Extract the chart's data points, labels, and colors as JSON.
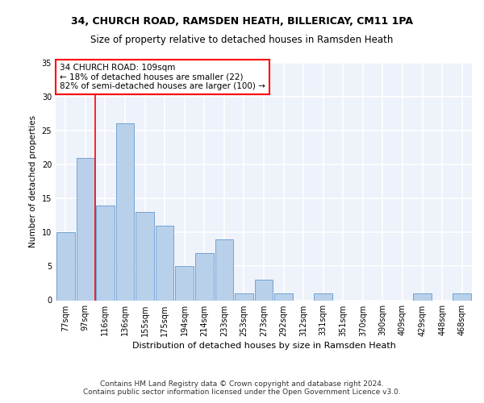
{
  "title1": "34, CHURCH ROAD, RAMSDEN HEATH, BILLERICAY, CM11 1PA",
  "title2": "Size of property relative to detached houses in Ramsden Heath",
  "xlabel": "Distribution of detached houses by size in Ramsden Heath",
  "ylabel": "Number of detached properties",
  "footer1": "Contains HM Land Registry data © Crown copyright and database right 2024.",
  "footer2": "Contains public sector information licensed under the Open Government Licence v3.0.",
  "categories": [
    "77sqm",
    "97sqm",
    "116sqm",
    "136sqm",
    "155sqm",
    "175sqm",
    "194sqm",
    "214sqm",
    "233sqm",
    "253sqm",
    "273sqm",
    "292sqm",
    "312sqm",
    "331sqm",
    "351sqm",
    "370sqm",
    "390sqm",
    "409sqm",
    "429sqm",
    "448sqm",
    "468sqm"
  ],
  "values": [
    10,
    21,
    14,
    26,
    13,
    11,
    5,
    7,
    9,
    1,
    3,
    1,
    0,
    1,
    0,
    0,
    0,
    0,
    1,
    0,
    1
  ],
  "bar_color": "#b8d0ea",
  "bar_edge_color": "#6699cc",
  "red_line_x": 1.5,
  "annotation_line1": "34 CHURCH ROAD: 109sqm",
  "annotation_line2": "← 18% of detached houses are smaller (22)",
  "annotation_line3": "82% of semi-detached houses are larger (100) →",
  "ylim": [
    0,
    35
  ],
  "yticks": [
    0,
    5,
    10,
    15,
    20,
    25,
    30,
    35
  ],
  "background_color": "#eef2fa",
  "grid_color": "#ffffff",
  "title1_fontsize": 9,
  "title2_fontsize": 8.5,
  "xlabel_fontsize": 8,
  "ylabel_fontsize": 7.5,
  "tick_fontsize": 7,
  "annot_fontsize": 7.5,
  "footer_fontsize": 6.5
}
